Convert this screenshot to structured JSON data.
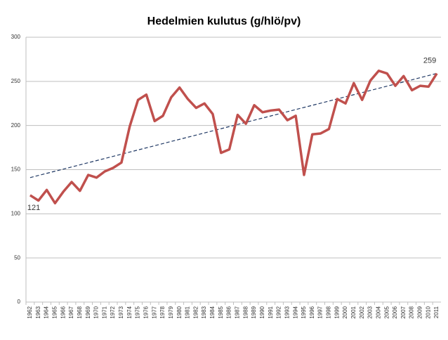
{
  "chart_data": {
    "type": "line",
    "title": "Hedelmien kulutus (g/hlö/pv)",
    "categories": [
      "1962",
      "1963",
      "1964",
      "1965",
      "1966",
      "1967",
      "1968",
      "1969",
      "1970",
      "1971",
      "1972",
      "1973",
      "1974",
      "1975",
      "1976",
      "1977",
      "1978",
      "1979",
      "1980",
      "1981",
      "1982",
      "1983",
      "1984",
      "1985",
      "1986",
      "1987",
      "1988",
      "1989",
      "1990",
      "1991",
      "1992",
      "1993",
      "1994",
      "1995",
      "1996",
      "1997",
      "1998",
      "1999",
      "2000",
      "2001",
      "2002",
      "2003",
      "2004",
      "2005",
      "2006",
      "2007",
      "2008",
      "2009",
      "2010",
      "2011"
    ],
    "values": [
      121,
      115,
      127,
      112,
      125,
      136,
      126,
      144,
      141,
      148,
      152,
      158,
      199,
      229,
      235,
      205,
      211,
      232,
      243,
      230,
      220,
      225,
      213,
      169,
      173,
      212,
      202,
      223,
      215,
      217,
      218,
      206,
      211,
      144,
      190,
      191,
      196,
      230,
      225,
      248,
      229,
      251,
      262,
      259,
      245,
      256,
      240,
      245,
      244,
      259
    ],
    "color": "#c0504d",
    "trend": {
      "start": 141,
      "end": 259,
      "color": "#1f3864"
    },
    "labeled_points": [
      0,
      49
    ],
    "ylim": [
      0,
      300
    ],
    "yticks": [
      0,
      50,
      100,
      150,
      200,
      250,
      300
    ],
    "grid": true
  }
}
